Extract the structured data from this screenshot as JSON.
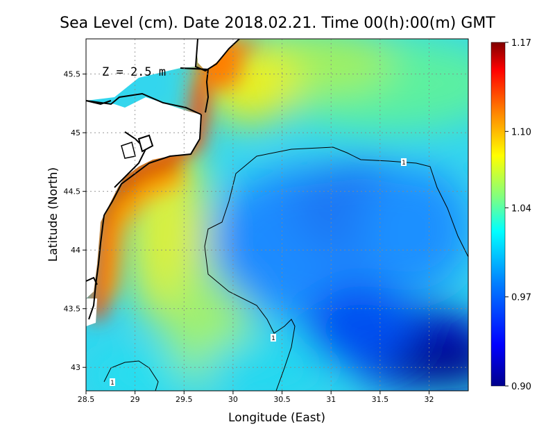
{
  "chart_data": {
    "type": "heatmap",
    "title": "Sea Level (cm). Date 2018.02.21. Time 00(h):00(m) GMT",
    "xlabel": "Longitude (East)",
    "ylabel": "Latitude (North)",
    "xlim": [
      28.5,
      32.4
    ],
    "ylim": [
      42.8,
      45.8
    ],
    "xticks": [
      "28.5",
      "29",
      "29.5",
      "30",
      "30.5",
      "31",
      "31.5",
      "32"
    ],
    "yticks": [
      "43",
      "43.5",
      "44",
      "44.5",
      "45",
      "45.5"
    ],
    "annotation": "Z = 2.5 m",
    "grid": true,
    "colorbar": {
      "min": 0.9,
      "max": 1.17,
      "ticks": [
        "0.90",
        "0.97",
        "1.04",
        "1.10",
        "1.17"
      ],
      "colors": [
        "#00008c",
        "#0000ff",
        "#0080ff",
        "#00ffff",
        "#80ff80",
        "#ffff00",
        "#ff8000",
        "#ff0000",
        "#800000"
      ]
    },
    "contours": [
      {
        "level": 1,
        "label": "1"
      }
    ],
    "field_description_points": [
      {
        "lon": 28.6,
        "lat": 44.3,
        "value": 1.16
      },
      {
        "lon": 29.2,
        "lat": 44.7,
        "value": 1.15
      },
      {
        "lon": 29.7,
        "lat": 45.6,
        "value": 1.17
      },
      {
        "lon": 29.0,
        "lat": 44.0,
        "value": 1.07
      },
      {
        "lon": 29.4,
        "lat": 43.5,
        "value": 1.04
      },
      {
        "lon": 30.5,
        "lat": 44.0,
        "value": 0.96
      },
      {
        "lon": 31.3,
        "lat": 44.2,
        "value": 0.96
      },
      {
        "lon": 31.8,
        "lat": 44.4,
        "value": 0.96
      },
      {
        "lon": 32.0,
        "lat": 43.1,
        "value": 0.91
      },
      {
        "lon": 31.5,
        "lat": 43.3,
        "value": 0.93
      },
      {
        "lon": 30.0,
        "lat": 45.4,
        "value": 1.1
      },
      {
        "lon": 31.0,
        "lat": 45.2,
        "value": 1.03
      },
      {
        "lon": 32.2,
        "lat": 45.5,
        "value": 1.02
      },
      {
        "lon": 30.0,
        "lat": 43.2,
        "value": 1.02
      }
    ]
  }
}
